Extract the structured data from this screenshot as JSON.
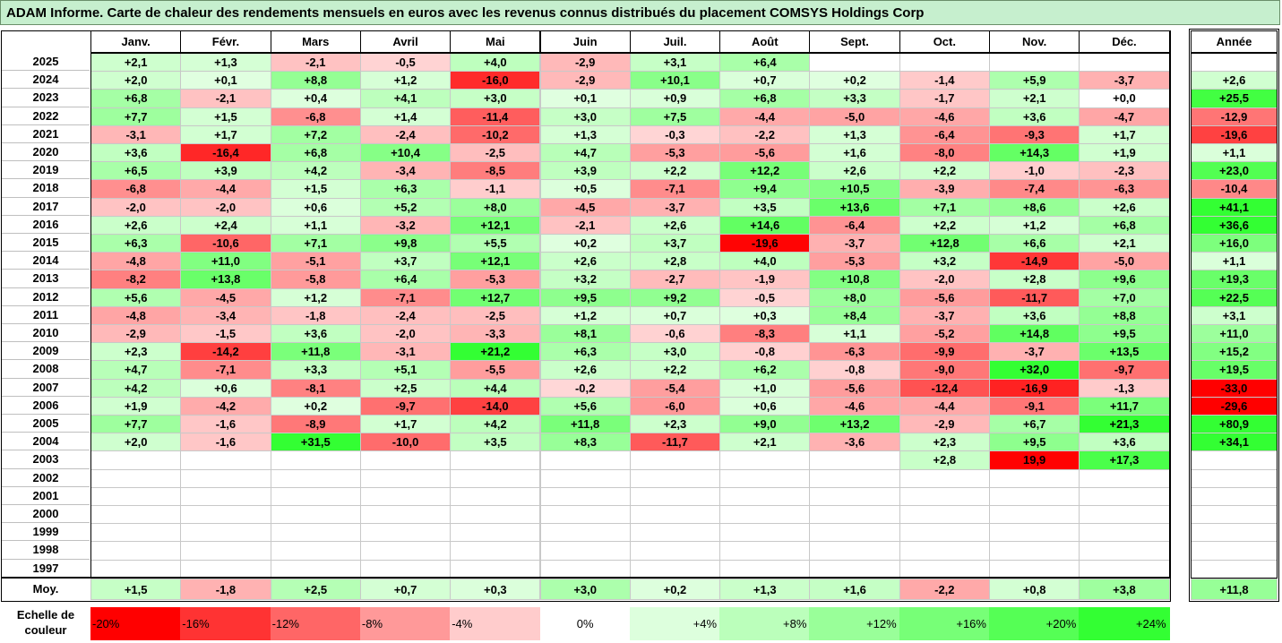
{
  "title": "ADAM Informe. Carte de chaleur des rendements mensuels en euros avec les revenus connus distribués du placement COMSYS Holdings Corp",
  "colors": {
    "strong_red": "#ff0000",
    "strong_green": "#33ff33",
    "white": "#ffffff",
    "grid": "#c8c8c8",
    "header_bg": "#c6efce"
  },
  "months": [
    "Janv.",
    "Févr.",
    "Mars",
    "Avril",
    "Mai",
    "Juin",
    "Juil.",
    "Août",
    "Sept.",
    "Oct.",
    "Nov.",
    "Déc."
  ],
  "year_header": "Année",
  "avg_label": "Moy.",
  "chart_data": {
    "type": "heatmap",
    "title": "ADAM Informe. Carte de chaleur des rendements mensuels en euros avec les revenus connus distribués du placement COMSYS Holdings Corp",
    "x": [
      "Janv.",
      "Févr.",
      "Mars",
      "Avril",
      "Mai",
      "Juin",
      "Juil.",
      "Août",
      "Sept.",
      "Oct.",
      "Nov.",
      "Déc."
    ],
    "rows": [
      {
        "year": "2025",
        "values": [
          "+2,1",
          "+1,3",
          "-2,1",
          "-0,5",
          "+4,0",
          "-2,9",
          "+3,1",
          "+6,4",
          "",
          "",
          "",
          ""
        ],
        "annual": ""
      },
      {
        "year": "2024",
        "values": [
          "+2,0",
          "+0,1",
          "+8,8",
          "+1,2",
          "-16,0",
          "-2,9",
          "+10,1",
          "+0,7",
          "+0,2",
          "-1,4",
          "+5,9",
          "-3,7"
        ],
        "annual": "+2,6"
      },
      {
        "year": "2023",
        "values": [
          "+6,8",
          "-2,1",
          "+0,4",
          "+4,1",
          "+3,0",
          "+0,1",
          "+0,9",
          "+6,8",
          "+3,3",
          "-1,7",
          "+2,1",
          "+0,0"
        ],
        "annual": "+25,5"
      },
      {
        "year": "2022",
        "values": [
          "+7,7",
          "+1,5",
          "-6,8",
          "+1,4",
          "-11,4",
          "+3,0",
          "+7,5",
          "-4,4",
          "-5,0",
          "-4,6",
          "+3,6",
          "-4,7"
        ],
        "annual": "-12,9"
      },
      {
        "year": "2021",
        "values": [
          "-3,1",
          "+1,7",
          "+7,2",
          "-2,4",
          "-10,2",
          "+1,3",
          "-0,3",
          "-2,2",
          "+1,3",
          "-6,4",
          "-9,3",
          "+1,7"
        ],
        "annual": "-19,6"
      },
      {
        "year": "2020",
        "values": [
          "+3,6",
          "-16,4",
          "+6,8",
          "+10,4",
          "-2,5",
          "+4,7",
          "-5,3",
          "-5,6",
          "+1,6",
          "-8,0",
          "+14,3",
          "+1,9"
        ],
        "annual": "+1,1"
      },
      {
        "year": "2019",
        "values": [
          "+6,5",
          "+3,9",
          "+4,2",
          "-3,4",
          "-8,5",
          "+3,9",
          "+2,2",
          "+12,2",
          "+2,6",
          "+2,2",
          "-1,0",
          "-2,3"
        ],
        "annual": "+23,0"
      },
      {
        "year": "2018",
        "values": [
          "-6,8",
          "-4,4",
          "+1,5",
          "+6,3",
          "-1,1",
          "+0,5",
          "-7,1",
          "+9,4",
          "+10,5",
          "-3,9",
          "-7,4",
          "-6,3"
        ],
        "annual": "-10,4"
      },
      {
        "year": "2017",
        "values": [
          "-2,0",
          "-2,0",
          "+0,6",
          "+5,2",
          "+8,0",
          "-4,5",
          "-3,7",
          "+3,5",
          "+13,6",
          "+7,1",
          "+8,6",
          "+2,6"
        ],
        "annual": "+41,1"
      },
      {
        "year": "2016",
        "values": [
          "+2,6",
          "+2,4",
          "+1,1",
          "-3,2",
          "+12,1",
          "-2,1",
          "+2,6",
          "+14,6",
          "-6,4",
          "+2,2",
          "+1,2",
          "+6,8"
        ],
        "annual": "+36,6"
      },
      {
        "year": "2015",
        "values": [
          "+6,3",
          "-10,6",
          "+7,1",
          "+9,8",
          "+5,5",
          "+0,2",
          "+3,7",
          "-19,6",
          "-3,7",
          "+12,8",
          "+6,6",
          "+2,1"
        ],
        "annual": "+16,0"
      },
      {
        "year": "2014",
        "values": [
          "-4,8",
          "+11,0",
          "-5,1",
          "+3,7",
          "+12,1",
          "+2,6",
          "+2,8",
          "+4,0",
          "-5,3",
          "+3,2",
          "-14,9",
          "-5,0"
        ],
        "annual": "+1,1"
      },
      {
        "year": "2013",
        "values": [
          "-8,2",
          "+13,8",
          "-5,8",
          "+6,4",
          "-5,3",
          "+3,2",
          "-2,7",
          "-1,9",
          "+10,8",
          "-2,0",
          "+2,8",
          "+9,6"
        ],
        "annual": "+19,3"
      },
      {
        "year": "2012",
        "values": [
          "+5,6",
          "-4,5",
          "+1,2",
          "-7,1",
          "+12,7",
          "+9,5",
          "+9,2",
          "-0,5",
          "+8,0",
          "-5,6",
          "-11,7",
          "+7,0"
        ],
        "annual": "+22,5"
      },
      {
        "year": "2011",
        "values": [
          "-4,8",
          "-3,4",
          "-1,8",
          "-2,4",
          "-2,5",
          "+1,2",
          "+0,7",
          "+0,3",
          "+8,4",
          "-3,7",
          "+3,6",
          "+8,8"
        ],
        "annual": "+3,1"
      },
      {
        "year": "2010",
        "values": [
          "-2,9",
          "-1,5",
          "+3,6",
          "-2,0",
          "-3,3",
          "+8,1",
          "-0,6",
          "-8,3",
          "+1,1",
          "-5,2",
          "+14,8",
          "+9,5"
        ],
        "annual": "+11,0"
      },
      {
        "year": "2009",
        "values": [
          "+2,3",
          "-14,2",
          "+11,8",
          "-3,1",
          "+21,2",
          "+6,3",
          "+3,0",
          "-0,8",
          "-6,3",
          "-9,9",
          "-3,7",
          "+13,5"
        ],
        "annual": "+15,2"
      },
      {
        "year": "2008",
        "values": [
          "+4,7",
          "-7,1",
          "+3,3",
          "+5,1",
          "-5,5",
          "+2,6",
          "+2,2",
          "+6,2",
          "-0,8",
          "-9,0",
          "+32,0",
          "-9,7"
        ],
        "annual": "+19,5"
      },
      {
        "year": "2007",
        "values": [
          "+4,2",
          "+0,6",
          "-8,1",
          "+2,5",
          "+4,4",
          "-0,2",
          "-5,4",
          "+1,0",
          "-5,6",
          "-12,4",
          "-16,9",
          "-1,3"
        ],
        "annual": "-33,0"
      },
      {
        "year": "2006",
        "values": [
          "+1,9",
          "-4,2",
          "+0,2",
          "-9,7",
          "-14,0",
          "+5,6",
          "-6,0",
          "+0,6",
          "-4,6",
          "-4,4",
          "-9,1",
          "+11,7"
        ],
        "annual": "-29,6"
      },
      {
        "year": "2005",
        "values": [
          "+7,7",
          "-1,6",
          "-8,9",
          "+1,7",
          "+4,2",
          "+11,8",
          "+2,3",
          "+9,0",
          "+13,2",
          "-2,9",
          "+6,7",
          "+21,3"
        ],
        "annual": "+80,9"
      },
      {
        "year": "2004",
        "values": [
          "+2,0",
          "-1,6",
          "+31,5",
          "-10,0",
          "+3,5",
          "+8,3",
          "-11,7",
          "+2,1",
          "-3,6",
          "+2,3",
          "+9,5",
          "+3,6"
        ],
        "annual": "+34,1"
      },
      {
        "year": "2003",
        "values": [
          "",
          "",
          "",
          "",
          "",
          "",
          "",
          "",
          "",
          "+2,8",
          "19,9",
          "+17,3"
        ],
        "annual": ""
      },
      {
        "year": "2002",
        "values": [
          "",
          "",
          "",
          "",
          "",
          "",
          "",
          "",
          "",
          "",
          "",
          ""
        ],
        "annual": ""
      },
      {
        "year": "2001",
        "values": [
          "",
          "",
          "",
          "",
          "",
          "",
          "",
          "",
          "",
          "",
          "",
          ""
        ],
        "annual": ""
      },
      {
        "year": "2000",
        "values": [
          "",
          "",
          "",
          "",
          "",
          "",
          "",
          "",
          "",
          "",
          "",
          ""
        ],
        "annual": ""
      },
      {
        "year": "1999",
        "values": [
          "",
          "",
          "",
          "",
          "",
          "",
          "",
          "",
          "",
          "",
          "",
          ""
        ],
        "annual": ""
      },
      {
        "year": "1998",
        "values": [
          "",
          "",
          "",
          "",
          "",
          "",
          "",
          "",
          "",
          "",
          "",
          ""
        ],
        "annual": ""
      },
      {
        "year": "1997",
        "values": [
          "",
          "",
          "",
          "",
          "",
          "",
          "",
          "",
          "",
          "",
          "",
          ""
        ],
        "annual": ""
      }
    ],
    "averages": [
      "+1,5",
      "-1,8",
      "+2,5",
      "+0,7",
      "+0,3",
      "+3,0",
      "+0,2",
      "+1,3",
      "+1,6",
      "-2,2",
      "+0,8",
      "+3,8"
    ],
    "annual_average": "+11,8",
    "value_special_colors": {
      "2003|10": "negative"
    }
  },
  "scale": {
    "label": "Echelle de couleur",
    "items": [
      {
        "label": "-20%",
        "value": -20
      },
      {
        "label": "-16%",
        "value": -16
      },
      {
        "label": "-12%",
        "value": -12
      },
      {
        "label": "-8%",
        "value": -8
      },
      {
        "label": "-4%",
        "value": -4
      },
      {
        "label": "0%",
        "value": 0
      },
      {
        "label": "+4%",
        "value": 4
      },
      {
        "label": "+8%",
        "value": 8
      },
      {
        "label": "+12%",
        "value": 12
      },
      {
        "label": "+16%",
        "value": 16
      },
      {
        "label": "+20%",
        "value": 20
      },
      {
        "label": "+24%",
        "value": 24
      }
    ]
  }
}
